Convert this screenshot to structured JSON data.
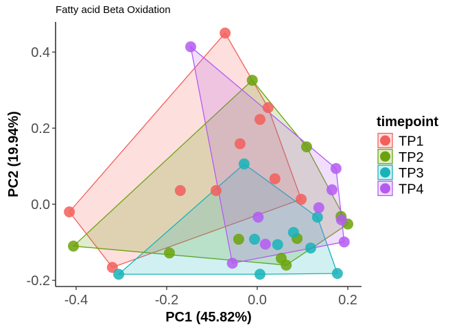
{
  "chart_data": {
    "type": "scatter",
    "title": "Fatty acid Beta Oxidation",
    "xlabel": "PC1 (45.82%)",
    "ylabel": "PC2 (19.94%)",
    "xlim": [
      -0.44,
      0.23
    ],
    "ylim": [
      -0.215,
      0.48
    ],
    "xticks": [
      -0.4,
      -0.2,
      0.0,
      0.2
    ],
    "xtick_labels": [
      "-0.4",
      "-0.2",
      "0.0",
      "0.2"
    ],
    "yticks": [
      -0.2,
      0.0,
      0.2,
      0.4
    ],
    "ytick_labels": [
      "-0.2",
      "0.0",
      "0.2",
      "0.4"
    ],
    "grid": false,
    "hulls": true,
    "legend": {
      "title": "timepoint",
      "placement": "right"
    },
    "series": [
      {
        "name": "TP1",
        "color": "#F35E5A",
        "points": [
          [
            -0.071,
            0.45
          ],
          [
            0.024,
            0.254
          ],
          [
            0.006,
            0.223
          ],
          [
            -0.038,
            0.159
          ],
          [
            0.039,
            0.067
          ],
          [
            -0.17,
            0.036
          ],
          [
            -0.091,
            0.036
          ],
          [
            0.097,
            0.013
          ],
          [
            -0.415,
            -0.02
          ],
          [
            -0.32,
            -0.166
          ]
        ]
      },
      {
        "name": "TP2",
        "color": "#6BA20A",
        "points": [
          [
            -0.011,
            0.326
          ],
          [
            0.109,
            0.151
          ],
          [
            0.185,
            -0.032
          ],
          [
            0.2,
            -0.052
          ],
          [
            0.088,
            -0.09
          ],
          [
            -0.041,
            -0.092
          ],
          [
            0.053,
            -0.142
          ],
          [
            0.064,
            -0.16
          ],
          [
            -0.194,
            -0.128
          ],
          [
            -0.406,
            -0.11
          ]
        ]
      },
      {
        "name": "TP3",
        "color": "#17B3B8",
        "points": [
          [
            -0.029,
            0.106
          ],
          [
            0.133,
            -0.034
          ],
          [
            0.08,
            -0.074
          ],
          [
            -0.006,
            -0.092
          ],
          [
            0.045,
            -0.106
          ],
          [
            0.118,
            -0.115
          ],
          [
            -0.306,
            -0.184
          ],
          [
            0.006,
            -0.184
          ],
          [
            0.177,
            -0.182
          ]
        ]
      },
      {
        "name": "TP4",
        "color": "#B45AF2",
        "points": [
          [
            -0.147,
            0.414
          ],
          [
            0.174,
            0.094
          ],
          [
            0.165,
            0.038
          ],
          [
            0.136,
            -0.009
          ],
          [
            0.002,
            -0.034
          ],
          [
            0.186,
            -0.041
          ],
          [
            0.018,
            -0.105
          ],
          [
            0.192,
            -0.099
          ],
          [
            -0.055,
            -0.155
          ]
        ]
      }
    ]
  }
}
